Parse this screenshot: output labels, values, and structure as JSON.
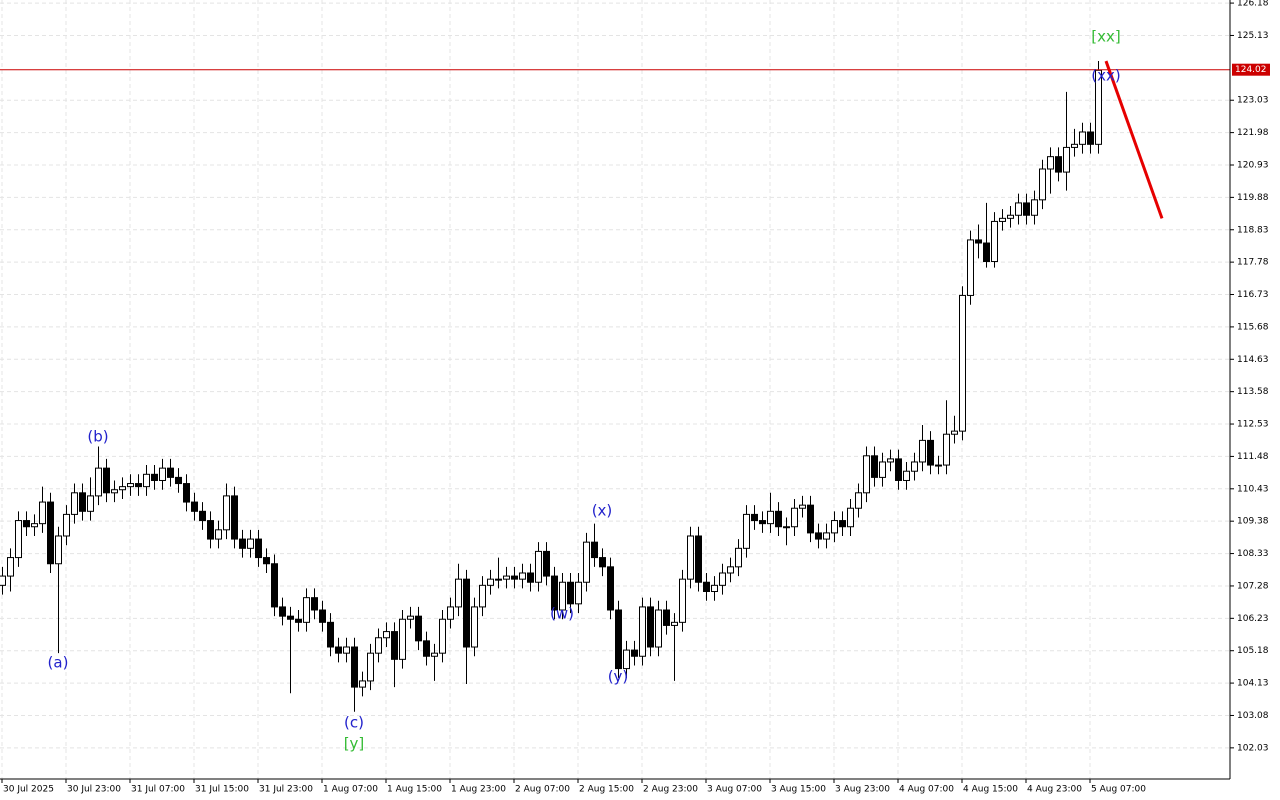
{
  "chart_data": {
    "type": "candlestick",
    "ylim": [
      101.02,
      126.28
    ],
    "xlim": [
      -0.25,
      153.5
    ],
    "grid": true,
    "yticks": [
      102.03,
      103.08,
      104.13,
      105.18,
      106.23,
      107.28,
      108.33,
      109.38,
      110.43,
      111.48,
      112.53,
      113.58,
      114.63,
      115.68,
      116.73,
      117.78,
      118.83,
      119.88,
      120.93,
      121.98,
      123.03,
      125.13,
      126.18
    ],
    "xticks": [
      {
        "value": 0,
        "label": "30 Jul 2025"
      },
      {
        "value": 8,
        "label": "30 Jul 23:00"
      },
      {
        "value": 16,
        "label": "31 Jul 07:00"
      },
      {
        "value": 24,
        "label": "31 Jul 15:00"
      },
      {
        "value": 32,
        "label": "31 Jul 23:00"
      },
      {
        "value": 40,
        "label": "1 Aug 07:00"
      },
      {
        "value": 48,
        "label": "1 Aug 15:00"
      },
      {
        "value": 56,
        "label": "1 Aug 23:00"
      },
      {
        "value": 64,
        "label": "2 Aug 07:00"
      },
      {
        "value": 72,
        "label": "2 Aug 15:00"
      },
      {
        "value": 80,
        "label": "2 Aug 23:00"
      },
      {
        "value": 88,
        "label": "3 Aug 07:00"
      },
      {
        "value": 96,
        "label": "3 Aug 15:00"
      },
      {
        "value": 104,
        "label": "3 Aug 23:00"
      },
      {
        "value": 112,
        "label": "4 Aug 07:00"
      },
      {
        "value": 120,
        "label": "4 Aug 15:00"
      },
      {
        "value": 128,
        "label": "4 Aug 23:00"
      },
      {
        "value": 136,
        "label": "5 Aug 07:00"
      }
    ],
    "bull_color": "#ffffff",
    "bear_color": "#000000",
    "open": [
      107.3,
      107.6,
      108.2,
      109.4,
      109.2,
      109.3,
      110.0,
      108.0,
      108.9,
      109.6,
      110.3,
      109.7,
      110.2,
      111.1,
      110.3,
      110.4,
      110.5,
      110.6,
      110.5,
      110.9,
      110.7,
      111.1,
      110.8,
      110.6,
      110.0,
      109.7,
      109.4,
      108.8,
      109.1,
      110.2,
      108.8,
      108.5,
      108.8,
      108.2,
      108.0,
      106.6,
      106.3,
      106.2,
      106.1,
      106.9,
      106.5,
      106.1,
      105.3,
      105.1,
      105.3,
      104.0,
      104.2,
      105.1,
      105.6,
      105.8,
      104.9,
      106.2,
      106.3,
      105.5,
      105.0,
      105.1,
      106.2,
      106.6,
      107.5,
      105.3,
      106.6,
      107.3,
      107.5,
      107.5,
      107.6,
      107.5,
      107.7,
      107.4,
      108.4,
      107.6,
      106.5,
      107.4,
      106.7,
      107.4,
      108.7,
      108.2,
      107.9,
      106.5,
      104.6,
      105.2,
      105.0,
      106.6,
      105.3,
      106.5,
      106.0,
      106.1,
      107.5,
      108.9,
      107.4,
      107.1,
      107.3,
      107.7,
      107.9,
      108.5,
      109.6,
      109.4,
      109.3,
      109.7,
      109.2,
      109.2,
      109.8,
      109.9,
      109.0,
      108.8,
      109.0,
      109.4,
      109.2,
      109.8,
      110.3,
      111.5,
      110.8,
      111.3,
      111.4,
      110.7,
      111.0,
      111.3,
      112.0,
      111.2,
      111.2,
      112.2,
      112.3,
      116.7,
      118.5,
      118.4,
      117.8,
      119.1,
      119.2,
      119.3,
      119.7,
      119.3,
      119.8,
      120.8,
      121.2,
      120.7,
      121.5,
      121.6,
      122.0,
      121.6
    ],
    "high": [
      107.9,
      108.5,
      109.7,
      109.7,
      109.6,
      110.5,
      110.3,
      109.2,
      109.9,
      110.6,
      110.6,
      110.8,
      111.8,
      111.4,
      110.7,
      110.8,
      110.9,
      110.9,
      111.2,
      111.2,
      111.4,
      111.4,
      111.1,
      110.9,
      110.3,
      110.0,
      109.7,
      109.4,
      110.6,
      110.5,
      109.1,
      109.1,
      109.1,
      108.5,
      108.3,
      106.9,
      106.6,
      106.5,
      107.2,
      107.2,
      106.8,
      106.4,
      105.6,
      105.6,
      105.6,
      104.5,
      105.4,
      105.9,
      106.1,
      106.1,
      106.5,
      106.6,
      106.6,
      105.8,
      105.4,
      106.5,
      106.9,
      108.0,
      107.8,
      106.9,
      107.6,
      107.8,
      108.2,
      107.9,
      107.9,
      108.0,
      108.0,
      108.7,
      108.7,
      107.9,
      107.7,
      107.7,
      107.7,
      109.0,
      109.3,
      108.5,
      108.2,
      106.8,
      105.5,
      105.5,
      106.9,
      106.9,
      106.8,
      106.8,
      106.4,
      107.8,
      109.2,
      109.2,
      107.7,
      107.6,
      108.0,
      108.2,
      108.8,
      109.9,
      109.9,
      109.7,
      110.3,
      110.0,
      109.5,
      110.1,
      110.2,
      110.2,
      109.3,
      109.3,
      109.7,
      109.7,
      110.1,
      110.6,
      111.8,
      111.8,
      111.6,
      111.7,
      111.7,
      111.3,
      111.6,
      112.5,
      112.3,
      111.5,
      113.3,
      112.8,
      117.0,
      118.8,
      119.0,
      119.7,
      119.4,
      119.5,
      119.6,
      120.0,
      120.0,
      120.1,
      121.1,
      121.5,
      121.5,
      123.3,
      122.1,
      122.3,
      122.3,
      124.3
    ],
    "low": [
      107.0,
      107.1,
      107.9,
      108.9,
      108.9,
      109.0,
      107.7,
      105.1,
      108.6,
      109.3,
      109.4,
      109.4,
      109.9,
      110.0,
      110.0,
      110.1,
      110.2,
      110.2,
      110.2,
      110.4,
      110.4,
      110.5,
      110.3,
      109.7,
      109.4,
      109.1,
      108.5,
      108.5,
      108.8,
      108.5,
      108.2,
      108.2,
      107.9,
      107.7,
      106.3,
      106.0,
      103.8,
      105.8,
      105.8,
      106.2,
      105.8,
      105.0,
      104.8,
      104.8,
      103.2,
      103.7,
      103.9,
      104.8,
      105.3,
      104.0,
      104.6,
      105.9,
      105.2,
      104.7,
      104.2,
      104.8,
      105.9,
      106.3,
      104.1,
      105.0,
      106.3,
      107.0,
      107.2,
      107.2,
      107.2,
      107.2,
      107.1,
      107.1,
      107.3,
      106.2,
      106.2,
      106.4,
      106.4,
      107.1,
      107.9,
      107.6,
      106.2,
      104.3,
      104.3,
      104.7,
      104.7,
      105.0,
      105.0,
      105.7,
      104.2,
      105.8,
      107.2,
      107.1,
      106.8,
      106.8,
      107.0,
      107.4,
      107.6,
      108.2,
      109.1,
      109.0,
      109.0,
      108.9,
      108.6,
      108.9,
      109.5,
      108.7,
      108.5,
      108.5,
      108.7,
      108.9,
      108.9,
      109.5,
      110.0,
      110.5,
      110.5,
      111.0,
      110.4,
      110.4,
      110.7,
      111.0,
      110.9,
      110.9,
      110.9,
      111.9,
      112.0,
      116.4,
      117.9,
      117.6,
      117.6,
      118.8,
      118.9,
      119.0,
      119.0,
      119.0,
      119.5,
      120.0,
      120.4,
      120.1,
      121.2,
      121.3,
      121.3,
      121.3
    ],
    "close": [
      107.6,
      108.2,
      109.4,
      109.2,
      109.3,
      110.0,
      108.0,
      108.9,
      109.6,
      110.3,
      109.7,
      110.2,
      111.1,
      110.3,
      110.4,
      110.5,
      110.6,
      110.5,
      110.9,
      110.7,
      111.1,
      110.8,
      110.6,
      110.0,
      109.7,
      109.4,
      108.8,
      109.1,
      110.2,
      108.8,
      108.5,
      108.8,
      108.2,
      108.0,
      106.6,
      106.3,
      106.2,
      106.1,
      106.9,
      106.5,
      106.1,
      105.3,
      105.1,
      105.3,
      104.0,
      104.2,
      105.1,
      105.6,
      105.8,
      104.9,
      106.2,
      106.3,
      105.5,
      105.0,
      105.1,
      106.2,
      106.6,
      107.5,
      105.3,
      106.6,
      107.3,
      107.5,
      107.5,
      107.6,
      107.5,
      107.7,
      107.4,
      108.4,
      107.6,
      106.5,
      107.4,
      106.7,
      107.4,
      108.7,
      108.2,
      107.9,
      106.5,
      104.6,
      105.2,
      105.0,
      106.6,
      105.3,
      106.5,
      106.0,
      106.1,
      107.5,
      108.9,
      107.4,
      107.1,
      107.3,
      107.7,
      107.9,
      108.5,
      109.6,
      109.4,
      109.3,
      109.7,
      109.2,
      109.2,
      109.8,
      109.9,
      109.0,
      108.8,
      109.0,
      109.4,
      109.2,
      109.8,
      110.3,
      111.5,
      110.8,
      111.3,
      111.4,
      110.7,
      111.0,
      111.3,
      112.0,
      111.2,
      111.2,
      112.2,
      112.3,
      116.7,
      118.5,
      118.4,
      117.8,
      119.1,
      119.2,
      119.3,
      119.7,
      119.3,
      119.8,
      120.8,
      121.2,
      120.7,
      121.5,
      121.6,
      122.0,
      121.6,
      124.0
    ],
    "price_line": {
      "value": 124.02,
      "color": "#cc0000"
    },
    "projection": {
      "x": [
        138,
        145
      ],
      "values": [
        124.3,
        119.2
      ],
      "color": "#e60000"
    },
    "annotations": [
      {
        "text": "(a)",
        "color": "#2222cc"
      },
      {
        "text": "(b)",
        "color": "#2222cc"
      },
      {
        "text": "(c)",
        "color": "#2222cc"
      },
      {
        "text": "[y]",
        "color": "#33bb33"
      },
      {
        "text": "(x)",
        "color": "#2222cc"
      },
      {
        "text": "(w)",
        "color": "#2222cc"
      },
      {
        "text": "(y)",
        "color": "#2222cc"
      },
      {
        "text": "[xx]",
        "color": "#33bb33"
      },
      {
        "text": "(xx)",
        "color": "#2222cc"
      }
    ]
  }
}
